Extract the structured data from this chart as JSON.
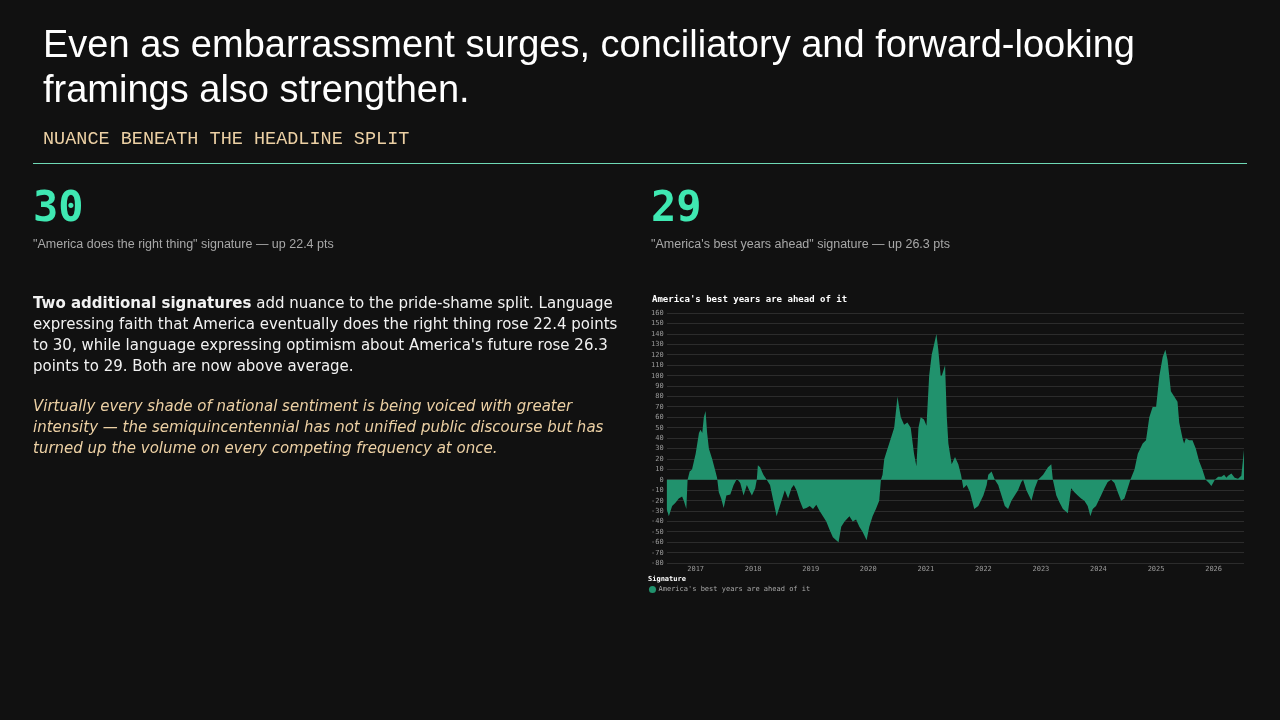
{
  "chart_data": {
    "type": "area",
    "title": "Even as embarrassment surges, conciliatory and forward-looking framings also strengthen.",
    "subtitle": "NUANCE BENEATH THE HEADLINE SPLIT",
    "legend_title": "Signature",
    "annotations": [
      "30",
      "\"America does the right thing\" signature — up 22.4 pts",
      "29",
      "\"America's best years ahead\" signature — up 26.3 pts",
      "Two additional signatures",
      "add nuance to the pride-shame split. Language expressing faith that America eventually does the right thing rose 22.4 points to 30, while language expressing optimism about America's future rose 26.3 points to 29. Both are now above average.",
      "Virtually every shade of national sentiment is being voiced with greater intensity — the semiquincentennial has not unified public discourse but has turned up the volume on every competing frequency at once.",
      "America's best years are ahead of it"
    ],
    "x": [
      "2016-07-01",
      "2016-07-15",
      "2016-08-05",
      "2016-08-26",
      "2016-09-16",
      "2016-10-07",
      "2016-10-18",
      "2016-11-03",
      "2016-11-11",
      "2016-11-24",
      "2016-12-09",
      "2017-01-01",
      "2017-01-22",
      "2017-02-01",
      "2017-02-12",
      "2017-02-22",
      "2017-03-05",
      "2017-03-15",
      "2017-03-26",
      "2017-04-16",
      "2017-05-07",
      "2017-05-17",
      "2017-05-28",
      "2017-06-12",
      "2017-06-28",
      "2017-07-15",
      "2017-08-09",
      "2017-08-30",
      "2017-09-20",
      "2017-10-11",
      "2017-11-01",
      "2017-11-22",
      "2017-12-07",
      "2017-12-24",
      "2018-01-14",
      "2018-01-24",
      "2018-01-31",
      "2018-02-14",
      "2018-03-07",
      "2018-03-28",
      "2018-04-18",
      "2018-05-09",
      "2018-05-30",
      "2018-06-09",
      "2018-06-30",
      "2018-07-21",
      "2018-08-11",
      "2018-09-01",
      "2018-09-16",
      "2018-10-03",
      "2018-10-24",
      "2018-11-14",
      "2018-12-05",
      "2018-12-26",
      "2019-01-16",
      "2019-02-06",
      "2019-02-27",
      "2019-03-20",
      "2019-04-10",
      "2019-05-01",
      "2019-05-22",
      "2019-06-12",
      "2019-06-27",
      "2019-07-14",
      "2019-08-04",
      "2019-09-04",
      "2019-09-25",
      "2019-10-16",
      "2019-11-06",
      "2019-11-27",
      "2019-12-22",
      "2020-01-08",
      "2020-01-29",
      "2020-02-19",
      "2020-03-11",
      "2020-03-22",
      "2020-04-01",
      "2020-04-12",
      "2020-05-03",
      "2020-05-24",
      "2020-06-14",
      "2020-07-05",
      "2020-07-15",
      "2020-07-26",
      "2020-08-16",
      "2020-09-06",
      "2020-09-27",
      "2020-10-18",
      "2020-11-02",
      "2020-11-15",
      "2020-11-29",
      "2020-12-20",
      "2021-01-05",
      "2021-01-22",
      "2021-02-07",
      "2021-02-22",
      "2021-03-09",
      "2021-03-21",
      "2021-04-05",
      "2021-04-12",
      "2021-05-03",
      "2021-05-14",
      "2021-05-24",
      "2021-06-14",
      "2021-07-05",
      "2021-07-26",
      "2021-08-12",
      "2021-08-27",
      "2021-09-17",
      "2021-10-08",
      "2021-11-04",
      "2021-11-30",
      "2022-01-01",
      "2022-01-22",
      "2022-02-01",
      "2022-02-22",
      "2022-03-15",
      "2022-04-05",
      "2022-04-26",
      "2022-05-17",
      "2022-06-07",
      "2022-06-28",
      "2022-07-19",
      "2022-08-09",
      "2022-08-30",
      "2022-09-10",
      "2022-10-01",
      "2022-11-02",
      "2022-11-23",
      "2022-12-14",
      "2023-01-15",
      "2023-02-15",
      "2023-03-08",
      "2023-03-18",
      "2023-04-09",
      "2023-04-30",
      "2023-05-21",
      "2023-06-21",
      "2023-07-12",
      "2023-08-02",
      "2023-08-23",
      "2023-09-13",
      "2023-10-04",
      "2023-10-25",
      "2023-11-11",
      "2023-11-26",
      "2023-12-17",
      "2024-01-18",
      "2024-02-08",
      "2024-02-29",
      "2024-03-22",
      "2024-04-12",
      "2024-05-03",
      "2024-05-24",
      "2024-06-14",
      "2024-07-05",
      "2024-07-22",
      "2024-08-17",
      "2024-09-07",
      "2024-10-08",
      "2024-10-29",
      "2024-11-19",
      "2024-12-10",
      "2025-01-01",
      "2025-01-22",
      "2025-02-12",
      "2025-03-01",
      "2025-03-15",
      "2025-04-05",
      "2025-04-26",
      "2025-05-17",
      "2025-05-28",
      "2025-06-18",
      "2025-06-28",
      "2025-07-09",
      "2025-07-30",
      "2025-08-20",
      "2025-09-10",
      "2025-10-01",
      "2025-10-22",
      "2025-11-12",
      "2025-12-03",
      "2025-12-18",
      "2026-01-09",
      "2026-01-30",
      "2026-02-20",
      "2026-03-09",
      "2026-03-23",
      "2026-04-03",
      "2026-04-24",
      "2026-05-15",
      "2026-06-05",
      "2026-06-26",
      "2026-07-13"
    ],
    "series": [
      {
        "name": "America's best years are ahead of it",
        "color": "#21926d",
        "values": [
          -28,
          -35,
          -25,
          -22,
          -18,
          -16,
          -20,
          -28,
          0,
          8,
          10,
          25,
          45,
          48,
          45,
          60,
          66,
          45,
          30,
          20,
          8,
          2,
          -12,
          -18,
          -27,
          -15,
          -14,
          -5,
          1,
          -3,
          -15,
          -5,
          -10,
          -15,
          -8,
          0,
          14,
          12,
          5,
          0,
          -5,
          -20,
          -35,
          -30,
          -20,
          -10,
          -18,
          -8,
          -5,
          -10,
          -20,
          -28,
          -27,
          -25,
          -28,
          -24,
          -30,
          -35,
          -40,
          -48,
          -55,
          -58,
          -60,
          -45,
          -40,
          -35,
          -40,
          -38,
          -45,
          -50,
          -58,
          -45,
          -35,
          -28,
          -20,
          0,
          5,
          20,
          30,
          40,
          50,
          80,
          70,
          60,
          53,
          55,
          50,
          25,
          13,
          50,
          60,
          58,
          52,
          100,
          120,
          130,
          140,
          125,
          100,
          100,
          110,
          60,
          35,
          15,
          22,
          15,
          5,
          -8,
          -5,
          -12,
          -28,
          -25,
          -15,
          -5,
          5,
          8,
          0,
          -5,
          -15,
          -25,
          -28,
          -20,
          -15,
          -10,
          -2,
          0,
          -10,
          -20,
          -8,
          0,
          5,
          12,
          15,
          0,
          -15,
          -22,
          -28,
          -32,
          -8,
          -12,
          -15,
          -18,
          -20,
          -25,
          -35,
          -28,
          -25,
          -15,
          -8,
          -2,
          0,
          -3,
          -12,
          -20,
          -18,
          -8,
          0,
          10,
          25,
          35,
          38,
          60,
          70,
          70,
          100,
          118,
          125,
          115,
          85,
          80,
          75,
          55,
          40,
          35,
          40,
          38,
          38,
          30,
          18,
          10,
          0,
          -3,
          -6,
          0,
          3,
          3,
          5,
          2,
          4,
          6,
          2,
          1,
          4,
          29
        ]
      }
    ],
    "xlim": [
      "2016-07-01",
      "2026-07-13"
    ],
    "xticks": [
      "2017",
      "2018",
      "2019",
      "2020",
      "2021",
      "2022",
      "2023",
      "2024",
      "2025",
      "2026"
    ],
    "ylim": [
      -80,
      160
    ],
    "yticks": [
      -80,
      -70,
      -60,
      -50,
      -40,
      -30,
      -20,
      -10,
      0,
      10,
      20,
      30,
      40,
      50,
      60,
      70,
      80,
      90,
      100,
      110,
      120,
      130,
      140,
      150,
      160
    ],
    "grid": "y",
    "legend": "bottom left",
    "marker": "none"
  }
}
